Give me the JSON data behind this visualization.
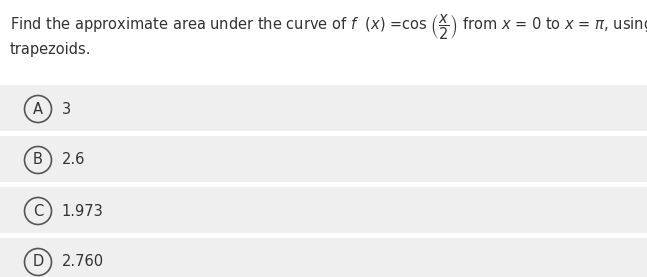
{
  "background_color": "#ffffff",
  "question_line2": "trapezoids.",
  "choices": [
    {
      "label": "A",
      "text": "3"
    },
    {
      "label": "B",
      "text": "2.6"
    },
    {
      "label": "C",
      "text": "1.973"
    },
    {
      "label": "D",
      "text": "2.760"
    }
  ],
  "choice_bg_color": "#efefef",
  "choice_border_color": "#dddddd",
  "circle_color": "#555555",
  "text_color": "#333333",
  "font_size": 10.5,
  "choice_font_size": 10.5
}
